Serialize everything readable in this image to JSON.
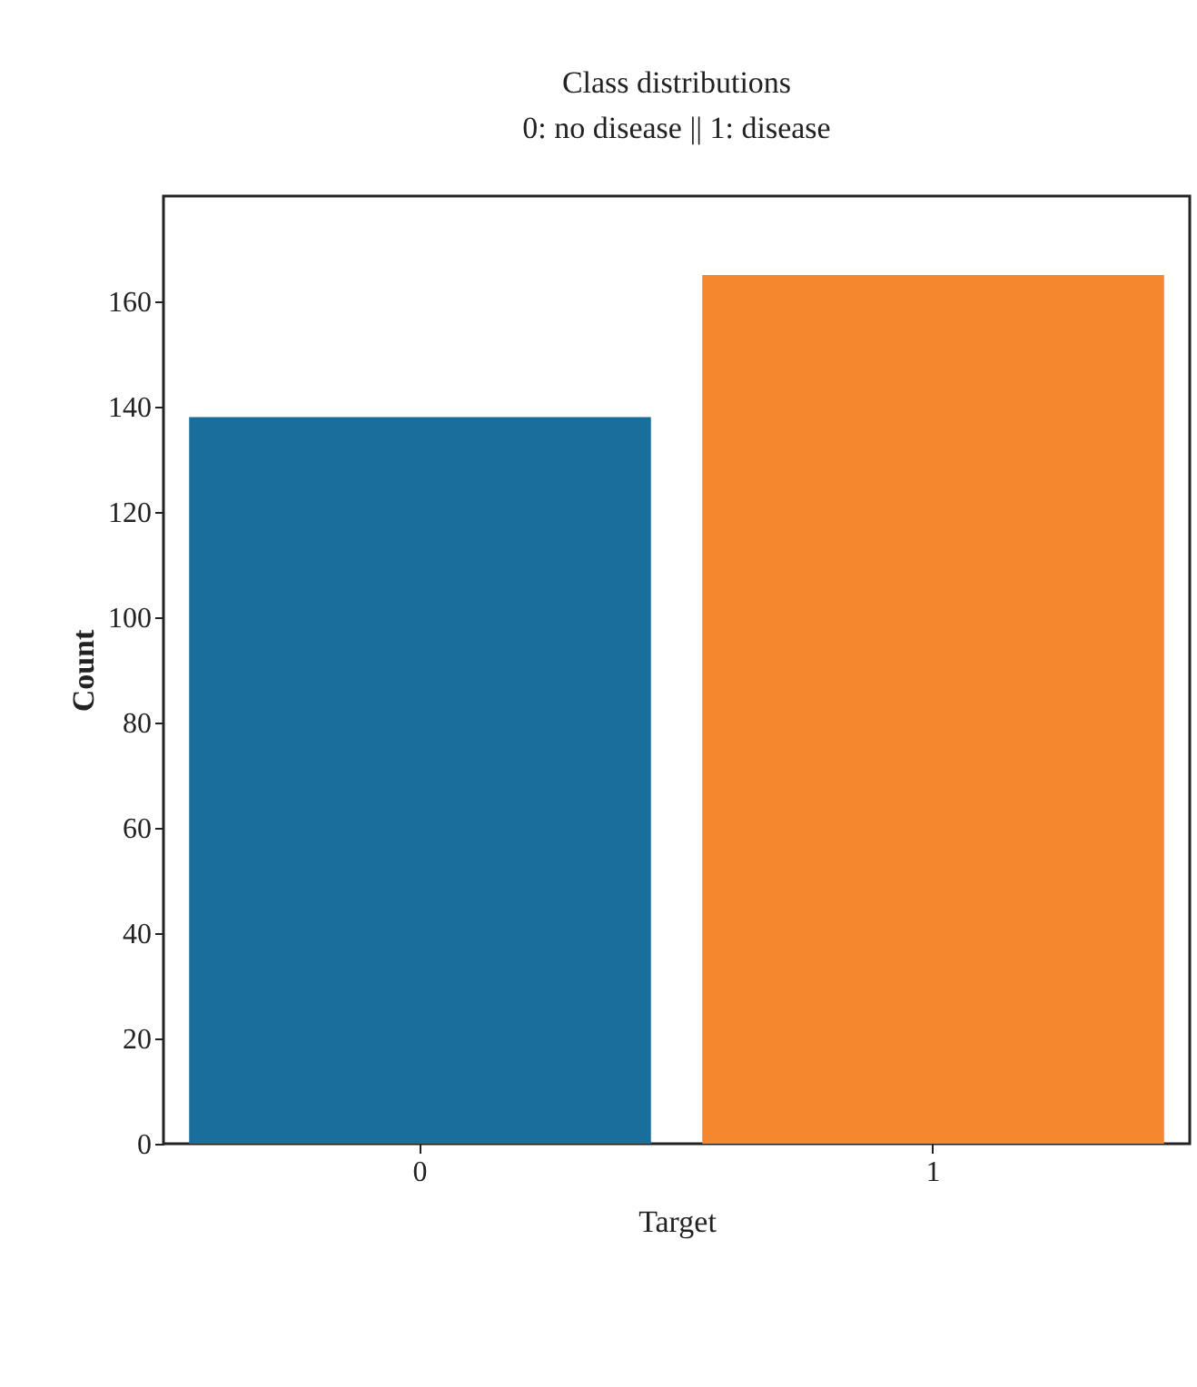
{
  "chart_data": {
    "type": "bar",
    "title": "Class distributions",
    "subtitle": "0: no disease || 1: disease",
    "xlabel": "Target",
    "ylabel": "Count",
    "categories": [
      "0",
      "1"
    ],
    "values": [
      138,
      165
    ],
    "colors": [
      "#1a6e9c",
      "#f5872f"
    ],
    "ylim": [
      0,
      180
    ],
    "yticks": [
      0,
      20,
      40,
      60,
      80,
      100,
      120,
      140,
      160
    ],
    "grid": false
  }
}
